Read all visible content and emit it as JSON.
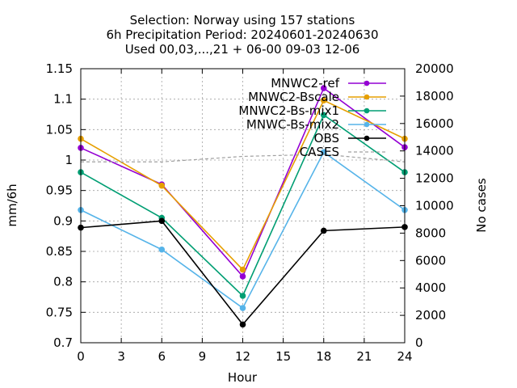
{
  "chart_data": {
    "type": "line",
    "title_lines": [
      "Selection: Norway using   157 stations",
      "6h Precipitation   Period: 20240601-20240630",
      "Used 00,03,...,21 + 06-00 09-03 12-06"
    ],
    "xlabel": "Hour",
    "ylabel": "mm/6h",
    "y2label": "No cases",
    "xlim": [
      0,
      24
    ],
    "ylim": [
      0.7,
      1.15
    ],
    "y2lim": [
      0,
      20000
    ],
    "xticks": [
      "0",
      "3",
      "6",
      "9",
      "12",
      "15",
      "18",
      "21",
      "24"
    ],
    "yticks": [
      "0.7",
      "0.75",
      "0.8",
      "0.85",
      "0.9",
      "0.95",
      "1",
      "1.05",
      "1.1",
      "1.15"
    ],
    "y2ticks": [
      "0",
      "2000",
      "4000",
      "6000",
      "8000",
      "10000",
      "12000",
      "14000",
      "16000",
      "18000",
      "20000"
    ],
    "grid": true,
    "legend_position": "top-right",
    "x": [
      0,
      6,
      12,
      18,
      24
    ],
    "series": [
      {
        "name": "MNWC2-ref",
        "color": "#9400d3",
        "marker": "circle",
        "axis": "y1",
        "values": [
          1.02,
          0.96,
          0.809,
          1.118,
          1.021
        ]
      },
      {
        "name": "MNWC2-Bscale",
        "color": "#e69f00",
        "marker": "circle",
        "axis": "y1",
        "values": [
          1.035,
          0.958,
          0.82,
          1.098,
          1.035
        ]
      },
      {
        "name": "MNWC2-Bs-mix1",
        "color": "#009e73",
        "marker": "circle",
        "axis": "y1",
        "values": [
          0.98,
          0.905,
          0.777,
          1.074,
          0.98
        ]
      },
      {
        "name": "MNWC-Bs-mix2",
        "color": "#56b4e9",
        "marker": "circle",
        "axis": "y1",
        "values": [
          0.918,
          0.853,
          0.757,
          1.013,
          0.918
        ]
      },
      {
        "name": "OBS",
        "color": "#000000",
        "marker": "circle",
        "axis": "y1",
        "values": [
          0.889,
          0.9,
          0.73,
          0.884,
          0.89
        ]
      },
      {
        "name": "CASES",
        "color": "#a0a0a0",
        "marker": "none",
        "dashed": true,
        "axis": "y2",
        "values": [
          13200,
          13200,
          13600,
          13750,
          13200
        ]
      }
    ]
  }
}
